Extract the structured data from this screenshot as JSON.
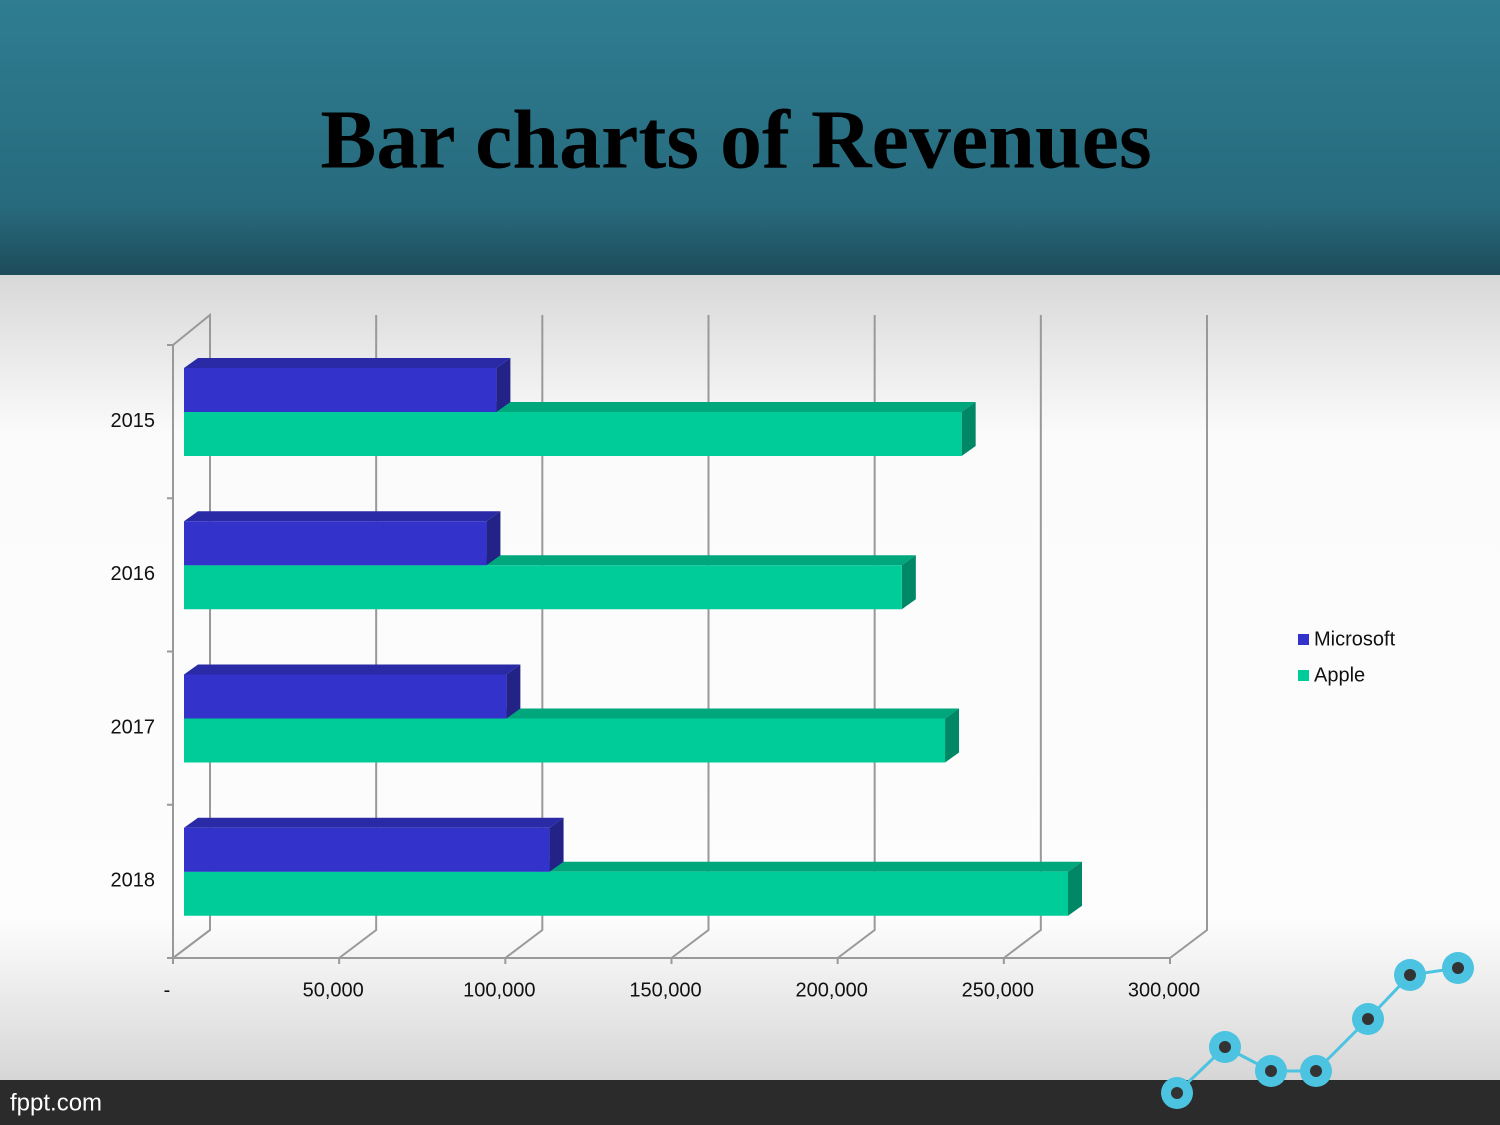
{
  "title": "Bar charts of Revenues",
  "footer": "fppt.com",
  "chart_data": {
    "type": "bar3d-horizontal",
    "categories": [
      "2015",
      "2016",
      "2017",
      "2018"
    ],
    "series": [
      {
        "name": "Microsoft",
        "color": "#3333cc",
        "values": [
          94000,
          91000,
          97000,
          110000
        ]
      },
      {
        "name": "Apple",
        "color": "#00cc99",
        "values": [
          234000,
          216000,
          229000,
          266000
        ]
      }
    ],
    "xlim": [
      0,
      300000
    ],
    "xticks": [
      {
        "value": 0,
        "label": "-"
      },
      {
        "value": 50000,
        "label": "50,000"
      },
      {
        "value": 100000,
        "label": "100,000"
      },
      {
        "value": 150000,
        "label": "150,000"
      },
      {
        "value": 200000,
        "label": "200,000"
      },
      {
        "value": 250000,
        "label": "250,000"
      },
      {
        "value": 300000,
        "label": "300,000"
      }
    ],
    "grid": true,
    "legend": "right"
  }
}
